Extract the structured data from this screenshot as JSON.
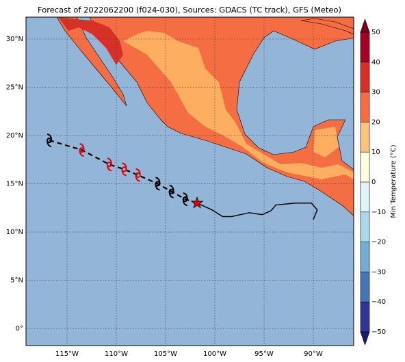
{
  "map": {
    "title": "Forecast of 2022062200 (f024-030), Sources: GDACS (TC track), GFS (Meteo)",
    "xlim": [
      -119.17,
      -85.9
    ],
    "ylim": [
      -1.77,
      32.27
    ],
    "xticks": [
      {
        "value": -115,
        "label": "115°W"
      },
      {
        "value": -110,
        "label": "110°W"
      },
      {
        "value": -105,
        "label": "105°W"
      },
      {
        "value": -100,
        "label": "100°W"
      },
      {
        "value": -95,
        "label": "95°W"
      },
      {
        "value": -90,
        "label": "90°W"
      }
    ],
    "yticks": [
      {
        "value": 0,
        "label": "0°"
      },
      {
        "value": 5,
        "label": "5°N"
      },
      {
        "value": 10,
        "label": "10°N"
      },
      {
        "value": 15,
        "label": "15°N"
      },
      {
        "value": 20,
        "label": "20°N"
      },
      {
        "value": 25,
        "label": "25°N"
      },
      {
        "value": 30,
        "label": "30°N"
      }
    ],
    "grid": true,
    "ocean_color": "#92b5d8",
    "colorbar": {
      "label": "Min Temperature (°C)",
      "ticks": [
        {
          "value": -50,
          "label": "−50"
        },
        {
          "value": -40,
          "label": "−40"
        },
        {
          "value": -30,
          "label": "−30"
        },
        {
          "value": -20,
          "label": "−20"
        },
        {
          "value": -10,
          "label": "−10"
        },
        0,
        10,
        20,
        30,
        40,
        50
      ],
      "colors": [
        "#313695",
        "#4575b4",
        "#74add1",
        "#abd9e9",
        "#e0f3f8",
        "#ffffdf",
        "#fdc47d",
        "#f46d43",
        "#d73027",
        "#a50026"
      ],
      "extend_colors": [
        "#1a1a70",
        "#7a0020"
      ]
    },
    "forecast": {
      "lon": [
        -116.8,
        -113.5,
        -110.7,
        -109.2,
        -107.8,
        -105.8,
        -104.4,
        -103.0
      ],
      "lat": [
        19.5,
        18.5,
        17.0,
        16.5,
        15.9,
        15.0,
        14.2,
        13.4
      ],
      "colors": [
        "#000000",
        "#e00000",
        "#e00000",
        "#e00000",
        "#e00000",
        "#000000",
        "#000000",
        "#000000"
      ]
    },
    "current": {
      "lon": -101.8,
      "lat": 13.0,
      "color": "#e00000"
    },
    "observed": {
      "lon": [
        -101.8,
        -100.3,
        -99.2,
        -98.3,
        -96.5,
        -95.2,
        -94.3,
        -93.8,
        -91.8,
        -90.2,
        -89.6,
        -90.0
      ],
      "lat": [
        13.0,
        12.3,
        11.6,
        11.6,
        12.0,
        11.8,
        12.2,
        12.8,
        13.0,
        13.0,
        12.3,
        11.3
      ]
    }
  }
}
